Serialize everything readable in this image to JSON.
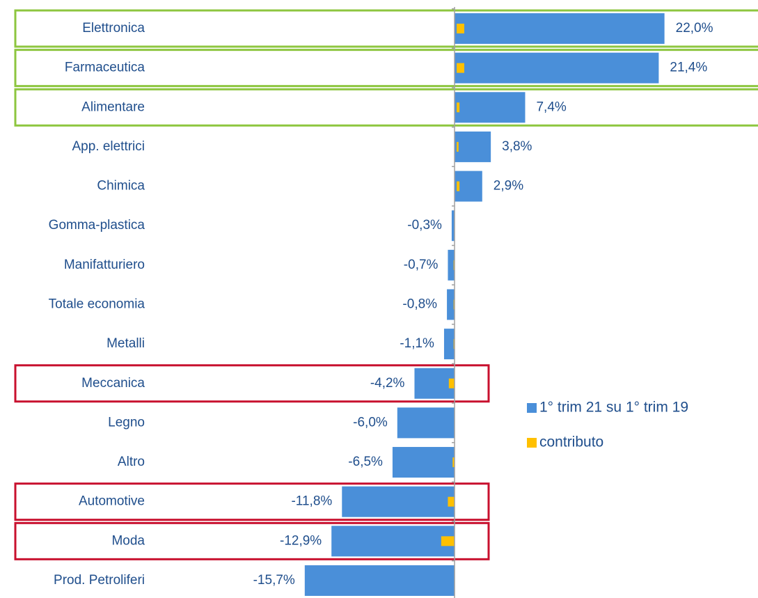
{
  "chart_data": {
    "type": "bar",
    "orientation": "horizontal",
    "categories": [
      "Elettronica",
      "Farmaceutica",
      "Alimentare",
      "App. elettrici",
      "Chimica",
      "Gomma-plastica",
      "Manifatturiero",
      "Totale economia",
      "Metalli",
      "Meccanica",
      "Legno",
      "Altro",
      "Automotive",
      "Moda",
      "Prod. Petroliferi"
    ],
    "series": [
      {
        "name": "1° trim 21 su 1° trim 19",
        "color": "#4a8fd9",
        "values": [
          22.0,
          21.4,
          7.4,
          3.8,
          2.9,
          -0.3,
          -0.7,
          -0.8,
          -1.1,
          -4.2,
          -6.0,
          -6.5,
          -11.8,
          -12.9,
          -15.7
        ],
        "value_labels": [
          "22,0%",
          "21,4%",
          "7,4%",
          "3,8%",
          "2,9%",
          "-0,3%",
          "-0,7%",
          "-0,8%",
          "-1,1%",
          "-4,2%",
          "-6,0%",
          "-6,5%",
          "-11,8%",
          "-12,9%",
          "-15,7%"
        ]
      },
      {
        "name": "contributo",
        "color": "#ffc000",
        "values": [
          0.8,
          0.8,
          0.3,
          0.2,
          0.3,
          0.0,
          -0.1,
          -0.1,
          -0.1,
          -0.6,
          0.0,
          -0.2,
          -0.7,
          -1.4,
          0.0
        ]
      }
    ],
    "xlim": [
      -17,
      31
    ]
  }
}
